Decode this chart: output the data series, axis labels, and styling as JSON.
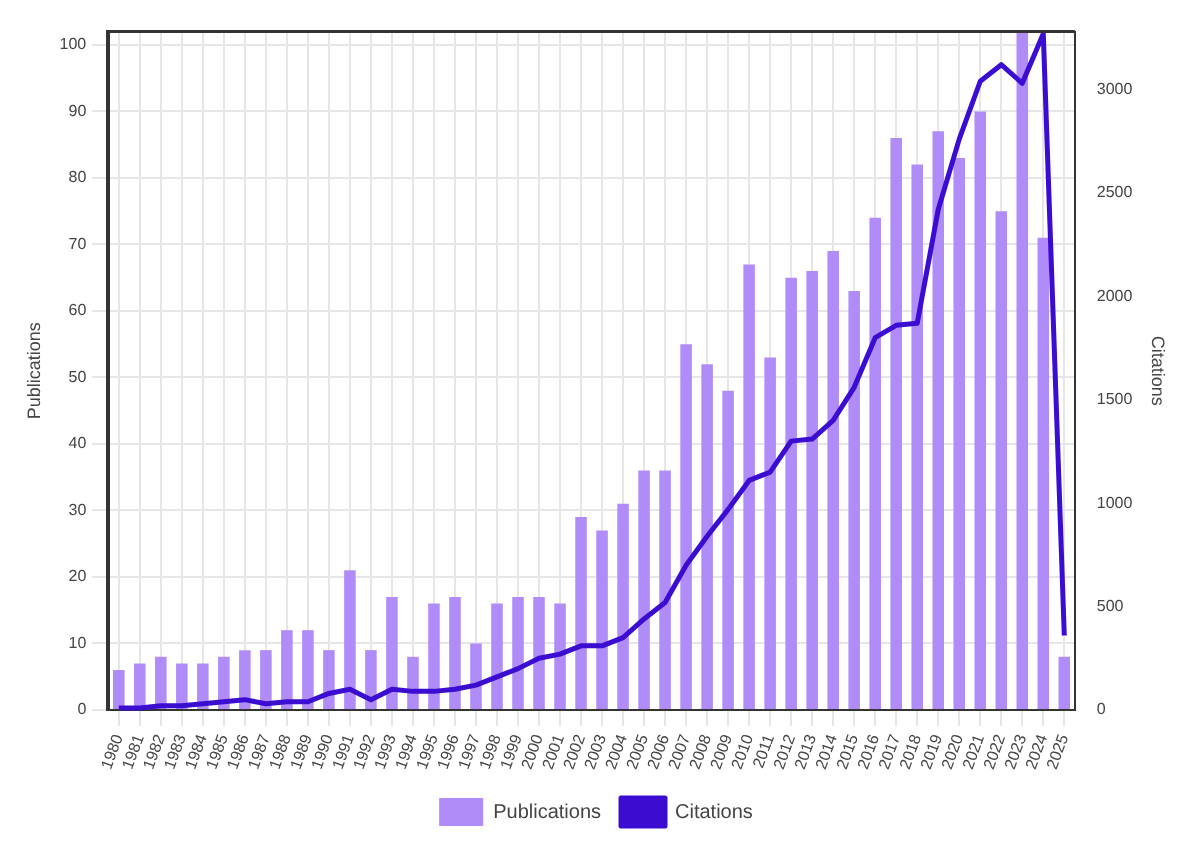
{
  "chart_data": {
    "type": "bar",
    "ylabel": "Publications",
    "y2label": "Citations",
    "categories": [
      "1980",
      "1981",
      "1982",
      "1983",
      "1984",
      "1985",
      "1986",
      "1987",
      "1988",
      "1989",
      "1990",
      "1991",
      "1992",
      "1993",
      "1994",
      "1995",
      "1996",
      "1997",
      "1998",
      "1999",
      "2000",
      "2001",
      "2002",
      "2003",
      "2004",
      "2005",
      "2006",
      "2007",
      "2008",
      "2009",
      "2010",
      "2011",
      "2012",
      "2013",
      "2014",
      "2015",
      "2016",
      "2017",
      "2018",
      "2019",
      "2020",
      "2021",
      "2022",
      "2023",
      "2024",
      "2025"
    ],
    "series": [
      {
        "name": "Publications",
        "color": "#b08cf8",
        "values": [
          6,
          7,
          8,
          7,
          7,
          8,
          9,
          9,
          12,
          12,
          9,
          21,
          9,
          17,
          8,
          16,
          17,
          10,
          16,
          17,
          17,
          16,
          29,
          27,
          31,
          36,
          36,
          55,
          52,
          48,
          67,
          53,
          65,
          66,
          69,
          63,
          74,
          86,
          82,
          87,
          83,
          90,
          75,
          102,
          71,
          8
        ]
      },
      {
        "name": "Citations",
        "type": "line",
        "axis": "y2",
        "color": "#3a0dd0",
        "values": [
          10,
          10,
          20,
          20,
          30,
          40,
          50,
          30,
          40,
          40,
          80,
          100,
          50,
          100,
          90,
          90,
          100,
          120,
          160,
          200,
          250,
          270,
          310,
          310,
          350,
          440,
          520,
          700,
          840,
          970,
          1110,
          1150,
          1300,
          1310,
          1400,
          1560,
          1800,
          1860,
          1870,
          2420,
          2760,
          3040,
          3120,
          3030,
          3270,
          360
        ]
      }
    ],
    "ylim": [
      0,
      102
    ],
    "yticks": [
      0,
      10,
      20,
      30,
      40,
      50,
      60,
      70,
      80,
      90,
      100
    ],
    "y2lim": [
      0,
      3280
    ],
    "y2ticks": [
      0,
      500,
      1000,
      1500,
      2000,
      2500,
      3000
    ],
    "grid": true,
    "legend": "bottom",
    "marker": "none",
    "line_style": "solid"
  }
}
